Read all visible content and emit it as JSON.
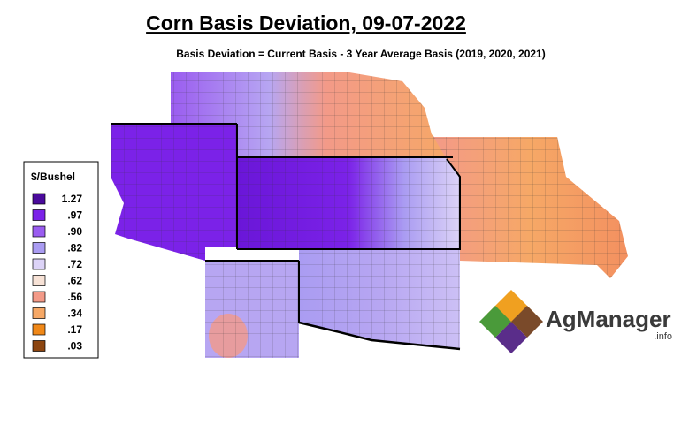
{
  "header": {
    "title": "Corn Basis Deviation, 09-07-2022",
    "subtitle": "Basis Deviation = Current Basis - 3 Year Average Basis (2019, 2020, 2021)"
  },
  "legend": {
    "title": "$/Bushel",
    "items": [
      {
        "label": "1.27",
        "color": "#4a0a9c"
      },
      {
        "label": ".97",
        "color": "#7b22e8"
      },
      {
        "label": ".90",
        "color": "#9a5cf0"
      },
      {
        "label": ".82",
        "color": "#aa9cf2"
      },
      {
        "label": ".72",
        "color": "#dcd3f7"
      },
      {
        "label": ".62",
        "color": "#f7e2d6"
      },
      {
        "label": ".56",
        "color": "#f39a88"
      },
      {
        "label": ".34",
        "color": "#f6a866"
      },
      {
        "label": ".17",
        "color": "#f08818"
      },
      {
        "label": ".03",
        "color": "#8c4510"
      }
    ]
  },
  "logo": {
    "name": "AgManager",
    "suffix": ".info"
  }
}
